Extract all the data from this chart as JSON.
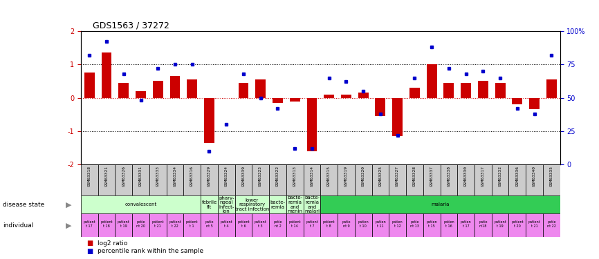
{
  "title": "GDS1563 / 37272",
  "samples": [
    "GSM63318",
    "GSM63321",
    "GSM63326",
    "GSM63331",
    "GSM63333",
    "GSM63334",
    "GSM63316",
    "GSM63329",
    "GSM63324",
    "GSM63339",
    "GSM63323",
    "GSM63322",
    "GSM63313",
    "GSM63314",
    "GSM63315",
    "GSM63319",
    "GSM63320",
    "GSM63325",
    "GSM63327",
    "GSM63328",
    "GSM63337",
    "GSM63338",
    "GSM63330",
    "GSM63317",
    "GSM63332",
    "GSM63336",
    "GSM63340",
    "GSM63335"
  ],
  "log2_ratio": [
    0.75,
    1.35,
    0.45,
    0.2,
    0.5,
    0.65,
    0.55,
    -1.35,
    0.0,
    0.45,
    0.55,
    -0.15,
    -0.12,
    -1.6,
    0.1,
    0.1,
    0.15,
    -0.55,
    -1.15,
    0.3,
    1.0,
    0.45,
    0.45,
    0.5,
    0.45,
    -0.2,
    -0.35,
    0.55
  ],
  "pct_rank": [
    82,
    92,
    68,
    48,
    72,
    75,
    75,
    10,
    30,
    68,
    50,
    42,
    12,
    12,
    65,
    62,
    55,
    38,
    22,
    65,
    88,
    72,
    68,
    70,
    65,
    42,
    38,
    82
  ],
  "bar_color": "#CC0000",
  "dot_color": "#0000CC",
  "gsm_box_color": "#cccccc",
  "disease_convalescent_color": "#ccffcc",
  "disease_malaria_color": "#33cc55",
  "disease_other_color": "#ccffcc",
  "individual_color": "#ee88ee",
  "disease_groups": [
    {
      "label": "convalescent",
      "start": 0,
      "end": 7
    },
    {
      "label": "febrile\nfit",
      "start": 7,
      "end": 8
    },
    {
      "label": "phary-\nngeal\ninfect-\nion",
      "start": 8,
      "end": 9
    },
    {
      "label": "lower\nrespiratory\ntract infection",
      "start": 9,
      "end": 11
    },
    {
      "label": "bacte-\nremia",
      "start": 11,
      "end": 12
    },
    {
      "label": "bacte-\nremia\nand\nmenin",
      "start": 12,
      "end": 13
    },
    {
      "label": "bacte-\nremia\nand\nmalari",
      "start": 13,
      "end": 14
    },
    {
      "label": "malaria",
      "start": 14,
      "end": 28
    }
  ],
  "indiv_top": [
    "patient",
    "patient",
    "patient",
    "patie",
    "patient",
    "patient",
    "patient",
    "patie",
    "patient",
    "patient",
    "patient",
    "patie",
    "patient",
    "patient",
    "patient",
    "patie",
    "patien",
    "patien",
    "patien",
    "patie",
    "patien",
    "patien",
    "patien",
    "patie",
    "patient",
    "patient",
    "patient",
    "patie"
  ],
  "indiv_bot": [
    "t 17",
    "t 18",
    "t 19",
    "nt 20",
    "t 21",
    "t 22",
    "t 1",
    "nt 5",
    "t 4",
    "t 6",
    "t 3",
    "nt 2",
    "t 14",
    "t 7",
    "t 8",
    "nt 9",
    "t 10",
    "t 11",
    "t 12",
    "nt 13",
    "t 15",
    "t 16",
    "t 17",
    "nt18",
    "t 19",
    "t 20",
    "t 21",
    "nt 22"
  ]
}
